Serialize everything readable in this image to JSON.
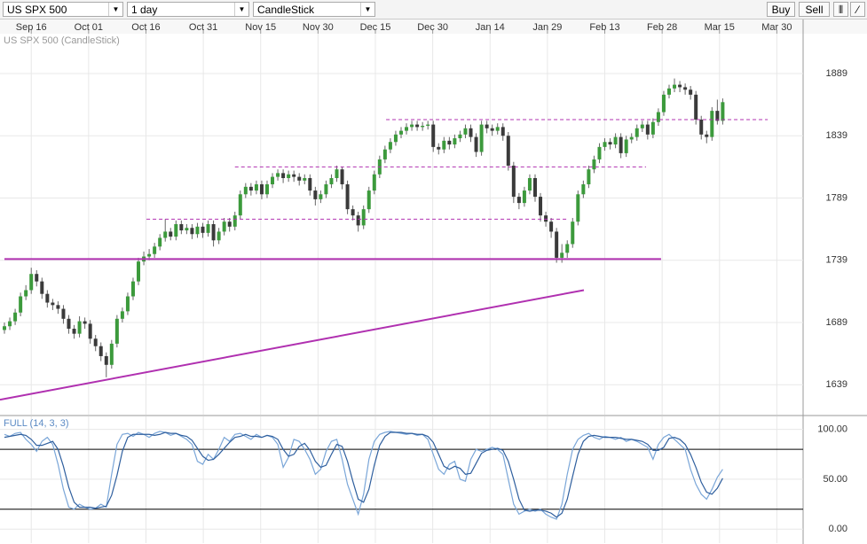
{
  "toolbar": {
    "symbol": "US SPX 500",
    "period": "1 day",
    "chart_type": "CandleStick",
    "buy": "Buy",
    "sell": "Sell"
  },
  "chart_data": [
    {
      "type": "candlestick",
      "title": "US SPX 500 (CandleStick)",
      "up_color": "#3c9a3c",
      "down_color": "#3a3a3a",
      "open": [
        1683,
        1686,
        1690,
        1697,
        1710,
        1715,
        1728,
        1722,
        1712,
        1705,
        1703,
        1700,
        1692,
        1684,
        1680,
        1690,
        1688,
        1676,
        1670,
        1662,
        1655,
        1672,
        1692,
        1698,
        1710,
        1722,
        1738,
        1742,
        1744,
        1750,
        1757,
        1762,
        1758,
        1768,
        1763,
        1765,
        1760,
        1766,
        1761,
        1768,
        1755,
        1762,
        1770,
        1766,
        1775,
        1792,
        1798,
        1795,
        1800,
        1792,
        1800,
        1806,
        1809,
        1805,
        1808,
        1806,
        1803,
        1805,
        1795,
        1788,
        1792,
        1800,
        1805,
        1812,
        1800,
        1780,
        1775,
        1767,
        1780,
        1795,
        1808,
        1820,
        1828,
        1834,
        1840,
        1843,
        1846,
        1848,
        1846,
        1847,
        1848,
        1830,
        1828,
        1835,
        1832,
        1837,
        1840,
        1845,
        1838,
        1826,
        1848,
        1845,
        1843,
        1846,
        1839,
        1815,
        1790,
        1785,
        1795,
        1805,
        1790,
        1775,
        1770,
        1762,
        1741,
        1745,
        1752,
        1770,
        1792,
        1800,
        1812,
        1820,
        1830,
        1834,
        1832,
        1838,
        1825,
        1836,
        1838,
        1845,
        1848,
        1840,
        1850,
        1858,
        1872,
        1877,
        1880,
        1878,
        1876,
        1872,
        1852,
        1840,
        1838,
        1859,
        1851
      ],
      "high": [
        1689,
        1693,
        1700,
        1713,
        1719,
        1733,
        1731,
        1725,
        1715,
        1708,
        1706,
        1703,
        1695,
        1687,
        1694,
        1693,
        1691,
        1679,
        1673,
        1665,
        1675,
        1695,
        1701,
        1713,
        1725,
        1741,
        1746,
        1748,
        1753,
        1760,
        1772,
        1765,
        1771,
        1771,
        1768,
        1768,
        1769,
        1769,
        1771,
        1771,
        1765,
        1773,
        1773,
        1778,
        1795,
        1801,
        1801,
        1803,
        1803,
        1803,
        1809,
        1812,
        1812,
        1811,
        1811,
        1809,
        1808,
        1808,
        1798,
        1795,
        1803,
        1808,
        1815,
        1814,
        1803,
        1783,
        1778,
        1783,
        1798,
        1811,
        1823,
        1831,
        1837,
        1843,
        1846,
        1849,
        1851,
        1851,
        1850,
        1851,
        1851,
        1833,
        1838,
        1838,
        1840,
        1843,
        1848,
        1848,
        1841,
        1851,
        1851,
        1848,
        1849,
        1849,
        1842,
        1818,
        1793,
        1798,
        1808,
        1808,
        1793,
        1778,
        1773,
        1765,
        1752,
        1755,
        1773,
        1795,
        1803,
        1815,
        1823,
        1833,
        1837,
        1837,
        1841,
        1841,
        1839,
        1841,
        1848,
        1851,
        1851,
        1853,
        1861,
        1875,
        1880,
        1885,
        1883,
        1881,
        1879,
        1875,
        1855,
        1843,
        1862,
        1868,
        1869
      ],
      "low": [
        1680,
        1683,
        1687,
        1694,
        1707,
        1712,
        1718,
        1708,
        1701,
        1699,
        1696,
        1688,
        1680,
        1676,
        1677,
        1684,
        1672,
        1666,
        1658,
        1645,
        1652,
        1669,
        1689,
        1695,
        1707,
        1719,
        1735,
        1739,
        1741,
        1747,
        1754,
        1755,
        1755,
        1760,
        1760,
        1756,
        1757,
        1757,
        1758,
        1750,
        1752,
        1759,
        1762,
        1763,
        1772,
        1789,
        1791,
        1792,
        1788,
        1789,
        1797,
        1803,
        1801,
        1802,
        1802,
        1799,
        1800,
        1791,
        1783,
        1785,
        1789,
        1797,
        1802,
        1796,
        1776,
        1771,
        1762,
        1764,
        1777,
        1792,
        1805,
        1817,
        1825,
        1831,
        1837,
        1840,
        1843,
        1843,
        1843,
        1844,
        1826,
        1824,
        1825,
        1828,
        1829,
        1834,
        1837,
        1834,
        1822,
        1823,
        1841,
        1839,
        1840,
        1835,
        1811,
        1785,
        1780,
        1782,
        1792,
        1786,
        1770,
        1766,
        1757,
        1737,
        1737,
        1741,
        1749,
        1767,
        1789,
        1797,
        1809,
        1817,
        1827,
        1828,
        1829,
        1821,
        1822,
        1833,
        1835,
        1842,
        1836,
        1837,
        1847,
        1855,
        1869,
        1874,
        1874,
        1872,
        1868,
        1848,
        1836,
        1833,
        1835,
        1848,
        1848
      ],
      "close": [
        1686,
        1690,
        1697,
        1710,
        1715,
        1728,
        1722,
        1712,
        1705,
        1703,
        1700,
        1692,
        1684,
        1680,
        1690,
        1688,
        1676,
        1670,
        1662,
        1655,
        1672,
        1692,
        1698,
        1710,
        1722,
        1738,
        1742,
        1744,
        1750,
        1757,
        1762,
        1758,
        1768,
        1763,
        1765,
        1760,
        1766,
        1761,
        1768,
        1755,
        1762,
        1770,
        1766,
        1775,
        1792,
        1798,
        1795,
        1800,
        1792,
        1800,
        1806,
        1809,
        1805,
        1808,
        1806,
        1803,
        1805,
        1795,
        1788,
        1792,
        1800,
        1805,
        1812,
        1800,
        1780,
        1775,
        1767,
        1780,
        1795,
        1808,
        1820,
        1828,
        1834,
        1840,
        1843,
        1846,
        1848,
        1846,
        1847,
        1848,
        1830,
        1828,
        1835,
        1832,
        1837,
        1840,
        1845,
        1838,
        1826,
        1848,
        1845,
        1843,
        1846,
        1839,
        1815,
        1790,
        1785,
        1795,
        1805,
        1790,
        1775,
        1770,
        1762,
        1741,
        1745,
        1752,
        1770,
        1792,
        1800,
        1812,
        1820,
        1830,
        1834,
        1832,
        1838,
        1825,
        1836,
        1838,
        1845,
        1848,
        1840,
        1850,
        1858,
        1872,
        1877,
        1880,
        1878,
        1876,
        1872,
        1852,
        1840,
        1838,
        1859,
        1851,
        1866
      ],
      "xlim": [
        -0.83,
        149
      ],
      "xticks": [
        {
          "value": 5,
          "label": "Sep 16"
        },
        {
          "value": 15.7,
          "label": "Oct 01"
        },
        {
          "value": 26.4,
          "label": "Oct 16"
        },
        {
          "value": 37.1,
          "label": "Oct 31"
        },
        {
          "value": 47.8,
          "label": "Nov 15"
        },
        {
          "value": 58.5,
          "label": "Nov 30"
        },
        {
          "value": 69.2,
          "label": "Dec 15"
        },
        {
          "value": 79.9,
          "label": "Dec 30"
        },
        {
          "value": 90.6,
          "label": "Jan 14"
        },
        {
          "value": 101.3,
          "label": "Jan 29"
        },
        {
          "value": 112,
          "label": "Feb 13"
        },
        {
          "value": 122.7,
          "label": "Feb 28"
        },
        {
          "value": 133.4,
          "label": "Mar 15"
        },
        {
          "value": 144.1,
          "label": "Mar 30"
        }
      ],
      "ylim": [
        1615,
        1921
      ],
      "yticks": [
        1639,
        1689,
        1739,
        1789,
        1839,
        1889
      ],
      "grid": true,
      "lines": [
        {
          "x": [
            71.2,
            142.4
          ],
          "y": [
            1852,
            1852
          ],
          "dash": true,
          "color": "#b030b0"
        },
        {
          "x": [
            43,
            119.7
          ],
          "y": [
            1814,
            1814
          ],
          "dash": true,
          "color": "#b030b0"
        },
        {
          "x": [
            26.5,
            105
          ],
          "y": [
            1772,
            1772
          ],
          "dash": true,
          "color": "#b030b0"
        },
        {
          "x": [
            0,
            122.5
          ],
          "y": [
            1740,
            1740
          ],
          "dash": false,
          "color": "#b030b0"
        },
        {
          "x": [
            -0.83,
            108.1
          ],
          "y": [
            1627,
            1715
          ],
          "dash": false,
          "color": "#b030b0"
        }
      ]
    },
    {
      "type": "line",
      "title": "FULL (14, 3, 3)",
      "xlim": [
        -0.83,
        149
      ],
      "ylim": [
        -14,
        113
      ],
      "yticks": [
        {
          "value": 100,
          "label": "100.00"
        },
        {
          "value": 50,
          "label": "50.00"
        },
        {
          "value": 0,
          "label": "0.00"
        }
      ],
      "levels": [
        80,
        20
      ],
      "series": [
        {
          "color": "#7aa6d8",
          "values": [
            95,
            93,
            96,
            97,
            90,
            85,
            78,
            88,
            92,
            85,
            65,
            40,
            22,
            20,
            25,
            22,
            20,
            21,
            25,
            22,
            55,
            85,
            95,
            96,
            93,
            97,
            95,
            92,
            96,
            98,
            97,
            94,
            96,
            93,
            90,
            85,
            68,
            65,
            75,
            70,
            80,
            92,
            88,
            95,
            96,
            93,
            90,
            95,
            92,
            94,
            92,
            85,
            62,
            72,
            90,
            88,
            80,
            70,
            55,
            60,
            78,
            88,
            90,
            70,
            45,
            30,
            15,
            35,
            70,
            88,
            95,
            97,
            98,
            97,
            96,
            95,
            96,
            94,
            95,
            90,
            75,
            60,
            55,
            65,
            68,
            50,
            48,
            70,
            80,
            78,
            80,
            82,
            80,
            75,
            50,
            25,
            15,
            18,
            20,
            18,
            20,
            15,
            12,
            10,
            25,
            55,
            80,
            90,
            94,
            96,
            92,
            90,
            93,
            92,
            90,
            92,
            88,
            90,
            88,
            85,
            82,
            70,
            85,
            92,
            95,
            90,
            85,
            80,
            60,
            45,
            35,
            30,
            40,
            52,
            60
          ]
        },
        {
          "color": "#2f5f9e",
          "values": [
            92,
            93,
            94,
            95,
            94,
            90,
            84,
            84,
            86,
            88,
            80,
            63,
            42,
            27,
            22,
            22,
            22,
            21,
            22,
            23,
            34,
            54,
            78,
            92,
            95,
            95,
            95,
            95,
            94,
            95,
            97,
            96,
            96,
            94,
            93,
            89,
            81,
            73,
            69,
            70,
            75,
            81,
            87,
            92,
            93,
            95,
            93,
            93,
            92,
            94,
            93,
            90,
            80,
            73,
            75,
            83,
            86,
            79,
            68,
            62,
            64,
            75,
            85,
            83,
            68,
            48,
            30,
            27,
            40,
            64,
            84,
            93,
            97,
            97,
            97,
            96,
            96,
            95,
            95,
            93,
            87,
            75,
            63,
            60,
            63,
            61,
            55,
            56,
            66,
            76,
            79,
            80,
            81,
            79,
            68,
            50,
            30,
            19,
            18,
            19,
            19,
            18,
            16,
            12,
            16,
            30,
            53,
            75,
            88,
            93,
            94,
            93,
            92,
            92,
            92,
            91,
            90,
            90,
            89,
            88,
            85,
            79,
            79,
            82,
            91,
            92,
            90,
            85,
            75,
            62,
            47,
            37,
            35,
            41,
            51
          ]
        }
      ]
    }
  ]
}
